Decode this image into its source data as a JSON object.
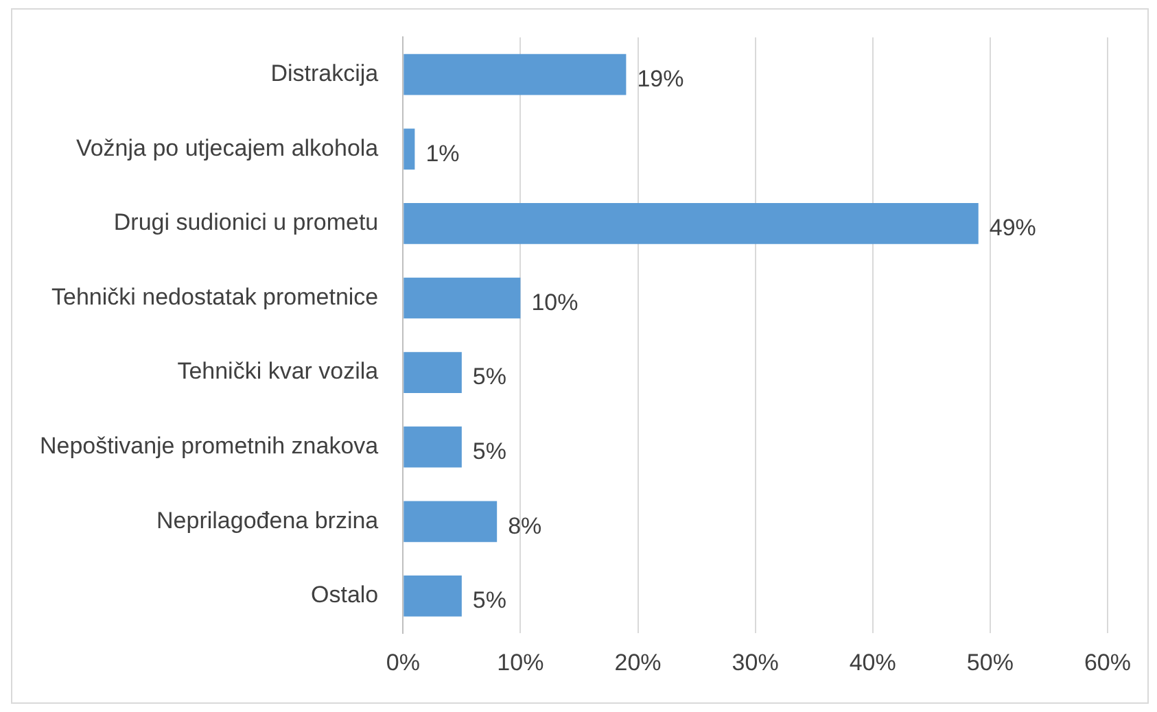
{
  "chart_data": {
    "type": "bar",
    "orientation": "horizontal",
    "categories": [
      "Distrakcija",
      "Vožnja po utjecajem alkohola",
      "Drugi sudionici u prometu",
      "Tehnički nedostatak prometnice",
      "Tehnički kvar vozila",
      "Nepoštivanje prometnih znakova",
      "Neprilagođena brzina",
      "Ostalo"
    ],
    "values": [
      19,
      1,
      49,
      10,
      5,
      5,
      8,
      5
    ],
    "value_labels": [
      "19%",
      "1%",
      "49%",
      "10%",
      "5%",
      "5%",
      "8%",
      "5%"
    ],
    "color": "#5b9bd5",
    "xlim": [
      0,
      60
    ],
    "xticks": [
      {
        "value": 0,
        "label": "0%"
      },
      {
        "value": 10,
        "label": "10%"
      },
      {
        "value": 20,
        "label": "20%"
      },
      {
        "value": 30,
        "label": "30%"
      },
      {
        "value": 40,
        "label": "40%"
      },
      {
        "value": 50,
        "label": "50%"
      },
      {
        "value": 60,
        "label": "60%"
      }
    ],
    "grid": "x"
  }
}
